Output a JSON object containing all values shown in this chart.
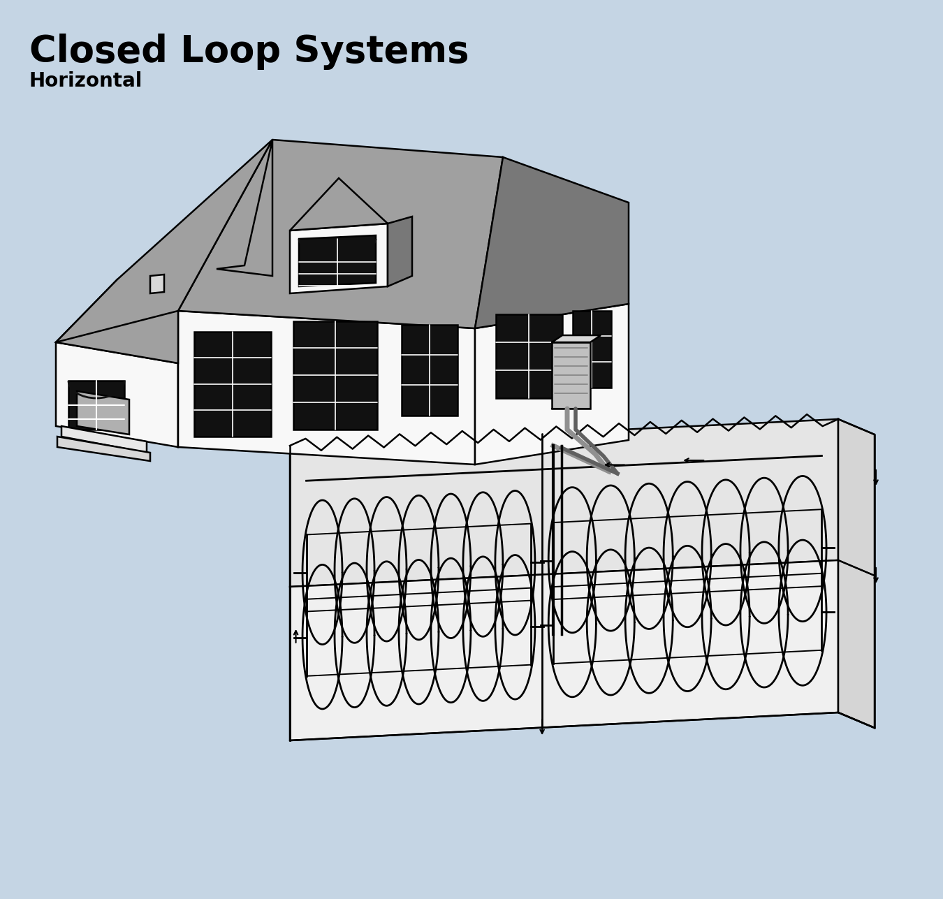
{
  "title": "Closed Loop Systems",
  "subtitle": "Horizontal",
  "bg_color": "#c5d5e4",
  "title_fontsize": 38,
  "subtitle_fontsize": 20,
  "title_color": "#000000",
  "white": "#f8f8f8",
  "light_gray": "#d8d8d8",
  "mid_gray": "#b0b0b0",
  "dark_gray": "#888888",
  "roof_gray": "#a0a0a0",
  "roof_dark": "#787878",
  "window_color": "#111111",
  "pit_top": "#e5e5e5",
  "pit_front": "#f0f0f0",
  "pit_right": "#d5d5d5"
}
